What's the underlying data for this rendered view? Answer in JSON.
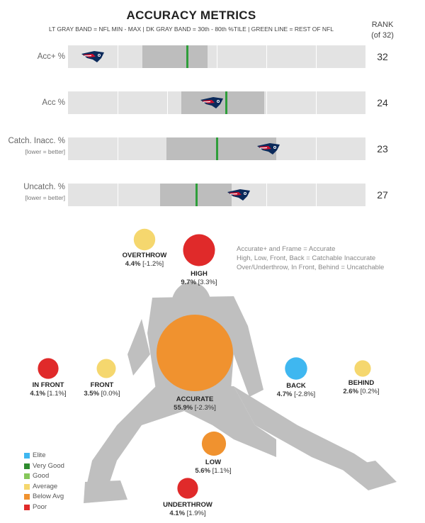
{
  "header": {
    "title": "ACCURACY METRICS",
    "subtitle": "LT GRAY BAND = NFL MIN - MAX | DK GRAY BAND = 30th - 80th %TILE | GREEN LINE = REST OF NFL",
    "rank_header": [
      "RANK",
      "(of 32)"
    ]
  },
  "note": [
    "Accurate+ and Frame = Accurate",
    "High, Low, Front, Back = Catchable Inaccurate",
    "Over/Underthrow, In Front, Behind = Uncatchable"
  ],
  "colors": {
    "elite": "#3fb7f0",
    "very_good": "#2e8b2e",
    "good": "#86c75a",
    "average": "#f5d76e",
    "below_avg": "#f0922f",
    "poor": "#e02a2a",
    "track": "#e3e3e3",
    "light_band": "#d6d6d6",
    "dark_band": "#bdbdbd",
    "green_line": "#2e9e3a"
  },
  "legend": [
    {
      "label": "Elite",
      "color": "#3fb7f0"
    },
    {
      "label": "Very Good",
      "color": "#2e8b2e"
    },
    {
      "label": "Good",
      "color": "#86c75a"
    },
    {
      "label": "Average",
      "color": "#f5d76e"
    },
    {
      "label": "Below Avg",
      "color": "#f0922f"
    },
    {
      "label": "Poor",
      "color": "#e02a2a"
    }
  ],
  "chart_data": [
    {
      "type": "bar",
      "description_scale": "0-1 fraction of axis range (axis values not printed)",
      "series": [
        {
          "label": "Acc+ %",
          "note": "",
          "rank": "32",
          "light": [
            0.0,
            1.0
          ],
          "dark": [
            0.25,
            0.47
          ],
          "green": 0.4,
          "team": 0.04
        },
        {
          "label": "Acc %",
          "note": "",
          "rank": "24",
          "light": [
            0.0,
            1.0
          ],
          "dark": [
            0.38,
            0.66
          ],
          "green": 0.53,
          "team": 0.44
        },
        {
          "label": "Catch. Inacc. %",
          "note": "[lower = better]",
          "rank": "23",
          "light": [
            0.0,
            1.0
          ],
          "dark": [
            0.33,
            0.7
          ],
          "green": 0.5,
          "team": 0.63
        },
        {
          "label": "Uncatch. %",
          "note": "[lower = better]",
          "rank": "27",
          "light": [
            0.0,
            1.0
          ],
          "dark": [
            0.31,
            0.55
          ],
          "green": 0.43,
          "team": 0.53
        }
      ]
    },
    {
      "type": "scatter",
      "points": [
        {
          "name": "OVERTHROW",
          "value": "4.4%",
          "diff": "[-1.2%]",
          "pct": 4.4,
          "rating": "average"
        },
        {
          "name": "HIGH",
          "value": "9.7%",
          "diff": "[3.3%]",
          "pct": 9.7,
          "rating": "poor"
        },
        {
          "name": "IN FRONT",
          "value": "4.1%",
          "diff": "[1.1%]",
          "pct": 4.1,
          "rating": "poor"
        },
        {
          "name": "FRONT",
          "value": "3.5%",
          "diff": "[0.0%]",
          "pct": 3.5,
          "rating": "average"
        },
        {
          "name": "ACCURATE",
          "value": "55.9%",
          "diff": "[-2.3%]",
          "pct": 55.9,
          "rating": "below_avg"
        },
        {
          "name": "BACK",
          "value": "4.7%",
          "diff": "[-2.8%]",
          "pct": 4.7,
          "rating": "elite"
        },
        {
          "name": "BEHIND",
          "value": "2.6%",
          "diff": "[0.2%]",
          "pct": 2.6,
          "rating": "average"
        },
        {
          "name": "LOW",
          "value": "5.6%",
          "diff": "[1.1%]",
          "pct": 5.6,
          "rating": "below_avg"
        },
        {
          "name": "UNDERTHROW",
          "value": "4.1%",
          "diff": "[1.9%]",
          "pct": 4.1,
          "rating": "poor"
        }
      ]
    }
  ]
}
